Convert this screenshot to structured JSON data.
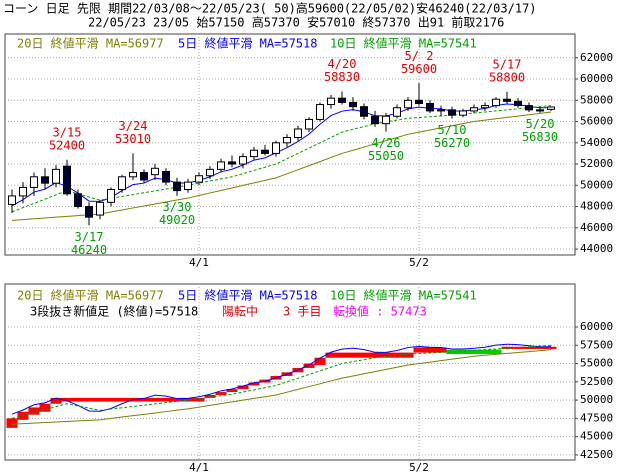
{
  "title": "コーン 日足 先限 期間22/03/08～22/05/23( 50)高59600(22/05/02)安46240(22/03/17)",
  "subtitle": "22/05/23 23/05 始57150 高57370 安57010 終57370 出91 前取2176",
  "chart_data": [
    {
      "type": "candlestick",
      "categories": [
        null,
        null,
        null,
        null,
        null,
        null,
        null,
        null,
        null,
        null,
        null,
        null,
        null,
        null,
        null,
        null,
        null,
        "4/1",
        null,
        null,
        null,
        null,
        null,
        null,
        null,
        null,
        null,
        null,
        null,
        null,
        null,
        null,
        null,
        null,
        null,
        null,
        null,
        "5/2",
        null,
        null,
        null,
        null,
        null,
        null,
        null,
        null,
        null,
        null,
        null,
        null
      ],
      "open": [
        48200,
        49000,
        49800,
        50800,
        50200,
        51800,
        49200,
        48000,
        47200,
        48400,
        49600,
        50800,
        51200,
        51000,
        51300,
        50300,
        49600,
        50300,
        50900,
        51500,
        52200,
        52000,
        52700,
        53300,
        53000,
        54000,
        54500,
        55300,
        56200,
        57600,
        58200,
        57800,
        57400,
        56500,
        55800,
        56500,
        57300,
        58000,
        57700,
        57000,
        57100,
        56600,
        57000,
        57300,
        57500,
        58100,
        57900,
        57500,
        57100,
        57150
      ],
      "high": [
        49600,
        50300,
        51200,
        51600,
        51900,
        52400,
        49600,
        48400,
        48600,
        49800,
        51000,
        53010,
        51500,
        52000,
        51600,
        50700,
        50600,
        51200,
        51800,
        52500,
        52800,
        53000,
        53600,
        53800,
        54200,
        54800,
        55600,
        56400,
        57800,
        58500,
        58830,
        58300,
        57700,
        57000,
        56800,
        57600,
        58300,
        59600,
        58000,
        57500,
        57400,
        57200,
        57600,
        57800,
        58300,
        58800,
        58200,
        57800,
        57400,
        57370
      ],
      "low": [
        47400,
        48300,
        49000,
        49600,
        49800,
        49000,
        47800,
        46240,
        46800,
        48000,
        49300,
        50500,
        50200,
        50500,
        50000,
        49020,
        49300,
        50000,
        50600,
        51200,
        51700,
        51600,
        52400,
        52800,
        52700,
        53600,
        54200,
        55000,
        56000,
        57200,
        57600,
        57000,
        56200,
        55500,
        55050,
        56300,
        57000,
        57500,
        56800,
        56500,
        56270,
        56400,
        56800,
        57000,
        57300,
        57700,
        57300,
        56900,
        56830,
        57010
      ],
      "close": [
        49000,
        49800,
        50800,
        50200,
        51500,
        49200,
        48000,
        47000,
        48400,
        49600,
        50800,
        51200,
        50500,
        51600,
        50300,
        49500,
        50300,
        50900,
        51500,
        52200,
        52000,
        52700,
        53300,
        53000,
        54000,
        54500,
        55300,
        56200,
        57600,
        58200,
        57800,
        57400,
        56500,
        55800,
        56500,
        57300,
        58000,
        57700,
        57000,
        57100,
        56600,
        57000,
        57300,
        57500,
        58100,
        57900,
        57500,
        57100,
        57000,
        57370
      ],
      "up_color": "#ffffff",
      "down_color": "#000033",
      "series": [
        {
          "name": "20日 終値平滑 MA=56977",
          "color": "#808000",
          "dashed": false,
          "values": [
            46700,
            46775,
            46850,
            46925,
            47000,
            47075,
            47150,
            47225,
            47300,
            47490,
            47680,
            47870,
            48050,
            48240,
            48430,
            48620,
            48800,
            49040,
            49280,
            49510,
            49750,
            49990,
            50230,
            50460,
            50700,
            51080,
            51470,
            51850,
            52230,
            52620,
            53000,
            53300,
            53600,
            53900,
            54200,
            54500,
            54800,
            55000,
            55200,
            55400,
            55600,
            55800,
            56000,
            56130,
            56260,
            56390,
            56510,
            56640,
            56770,
            56900
          ]
        },
        {
          "name": "5日 終値平滑 MA=57518",
          "color": "#0000ff",
          "dashed": false,
          "values": [
            48067,
            48645,
            49363,
            49642,
            50261,
            49907,
            49271,
            48514,
            48476,
            48851,
            49501,
            50067,
            50211,
            50674,
            50549,
            50199,
            50233,
            50455,
            50803,
            51269,
            51513,
            51909,
            52373,
            52582,
            53055,
            53537,
            54125,
            54817,
            55745,
            56563,
            56975,
            57117,
            56911,
            56541,
            56527,
            56785,
            57190,
            57360,
            57240,
            57193,
            56995,
            56997,
            57098,
            57232,
            57521,
            57647,
            57598,
            57432,
            57288,
            57315
          ]
        },
        {
          "name": "10日 終値平滑 MA=57541",
          "color": "#00a000",
          "dashed": true,
          "values": [
            47500,
            47900,
            48300,
            48700,
            49100,
            49500,
            49200,
            48900,
            48600,
            48775,
            48950,
            49125,
            49300,
            49475,
            49650,
            49825,
            50000,
            50200,
            50400,
            50600,
            50800,
            51100,
            51400,
            51700,
            52000,
            52500,
            53000,
            53500,
            54000,
            54500,
            55000,
            55270,
            55530,
            55800,
            55970,
            56130,
            56300,
            56380,
            56450,
            56530,
            56600,
            56700,
            56800,
            56900,
            57000,
            57100,
            57200,
            57300,
            57400,
            57500
          ]
        }
      ],
      "annotations": [
        {
          "date": "3/15",
          "value": 52400,
          "kind": "high"
        },
        {
          "date": "3/17",
          "value": 46240,
          "kind": "low"
        },
        {
          "date": "3/24",
          "value": 53010,
          "kind": "high"
        },
        {
          "date": "3/30",
          "value": 49020,
          "kind": "low"
        },
        {
          "date": "4/20",
          "value": 58830,
          "kind": "high"
        },
        {
          "date": "4/26",
          "value": 55050,
          "kind": "low"
        },
        {
          "date": "5/ 2",
          "value": 59600,
          "kind": "high"
        },
        {
          "date": "5/10",
          "value": 56270,
          "kind": "low"
        },
        {
          "date": "5/17",
          "value": 58800,
          "kind": "high"
        },
        {
          "date": "5/20",
          "value": 56830,
          "kind": "low"
        }
      ],
      "high_color": "#e00000",
      "low_color": "#00a000",
      "ylim": [
        43440,
        64240
      ],
      "yticks": [
        44000,
        46000,
        48000,
        50000,
        52000,
        54000,
        56000,
        58000,
        60000,
        62000
      ],
      "grid": true
    },
    {
      "type": "line_break",
      "status": [
        {
          "text": "3段抜き新値足 (終値)=57518",
          "color": "#000000"
        },
        {
          "text": "陽転中",
          "color": "#e00000"
        },
        {
          "text": "3 手目",
          "color": "#e00000"
        },
        {
          "text": "転換値 : 57473",
          "color": "#ff00ff"
        }
      ],
      "block_low": [
        46200,
        47300,
        48000,
        48400,
        49500,
        49800,
        49800,
        49800,
        49800,
        49800,
        49800,
        49800,
        49800,
        49800,
        49800,
        49800,
        49800,
        49800,
        50300,
        50700,
        51100,
        51500,
        52000,
        52400,
        52800,
        53300,
        53800,
        54400,
        54800,
        55800,
        55800,
        55800,
        55800,
        55800,
        55800,
        55800,
        55800,
        56500,
        56500,
        56500,
        56300,
        56300,
        56300,
        56300,
        56300,
        57000,
        57000,
        57000,
        57000,
        57000
      ],
      "block_high": [
        47500,
        48400,
        49000,
        49500,
        50300,
        50300,
        50300,
        50300,
        50300,
        50300,
        50300,
        50300,
        50300,
        50300,
        50300,
        50300,
        50300,
        50300,
        50700,
        51100,
        51500,
        52000,
        52400,
        52800,
        53300,
        53800,
        54400,
        55000,
        55800,
        56500,
        56500,
        56500,
        56500,
        56500,
        56500,
        56500,
        56500,
        57200,
        57200,
        57200,
        56900,
        56900,
        56900,
        56900,
        56900,
        57300,
        57300,
        57300,
        57300,
        57300
      ],
      "direction": [
        "up",
        "up",
        "up",
        "up",
        "up",
        "up",
        "up",
        "up",
        "up",
        "up",
        "up",
        "up",
        "up",
        "up",
        "up",
        "up",
        "up",
        "up",
        "up",
        "up",
        "up",
        "up",
        "up",
        "up",
        "up",
        "up",
        "up",
        "up",
        "up",
        "up",
        "up",
        "up",
        "up",
        "up",
        "up",
        "up",
        "up",
        "up",
        "up",
        "up",
        "down",
        "down",
        "down",
        "down",
        "down",
        "up",
        "up",
        "up",
        "up",
        "up"
      ],
      "up_color": "#ff0000",
      "down_color": "#00cc00",
      "ylim": [
        41800,
        65890
      ],
      "yticks": [
        42500,
        45000,
        47500,
        50000,
        52500,
        55000,
        57500,
        60000
      ],
      "grid": true
    }
  ]
}
